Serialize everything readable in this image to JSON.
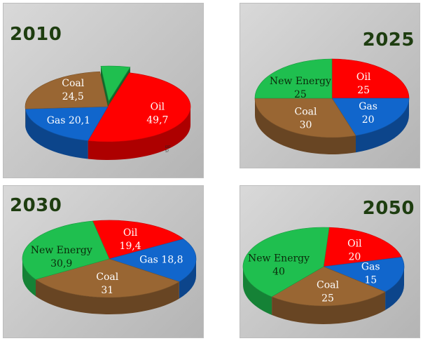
{
  "colors": {
    "Oil": "#ff0000",
    "Gas": "#1166cc",
    "Coal": "#996633",
    "New Energy": "#1fbf4f",
    "year_text": "#1e3d10"
  },
  "chart_data": [
    {
      "type": "pie",
      "title": "2010",
      "categories": [
        "Oil",
        "Gas",
        "Coal",
        "New Energy"
      ],
      "values": [
        49.7,
        20.1,
        24.5,
        5.7
      ],
      "labels": [
        "49,7",
        "20,1",
        "24,5",
        ""
      ],
      "annotation": "ERT 57"
    },
    {
      "type": "pie",
      "title": "2025",
      "categories": [
        "Oil",
        "Gas",
        "Coal",
        "New Energy"
      ],
      "values": [
        25,
        20,
        30,
        25
      ],
      "labels": [
        "25",
        "20",
        "30",
        "25"
      ]
    },
    {
      "type": "pie",
      "title": "2030",
      "categories": [
        "Oil",
        "Gas",
        "Coal",
        "New Energy"
      ],
      "values": [
        19.4,
        18.8,
        31,
        30.9
      ],
      "labels": [
        "19,4",
        "18,8",
        "31",
        "30,9"
      ]
    },
    {
      "type": "pie",
      "title": "2050",
      "categories": [
        "Oil",
        "Gas",
        "Coal",
        "New Energy"
      ],
      "values": [
        20,
        15,
        25,
        40
      ],
      "labels": [
        "20",
        "15",
        "25",
        "40"
      ]
    }
  ]
}
